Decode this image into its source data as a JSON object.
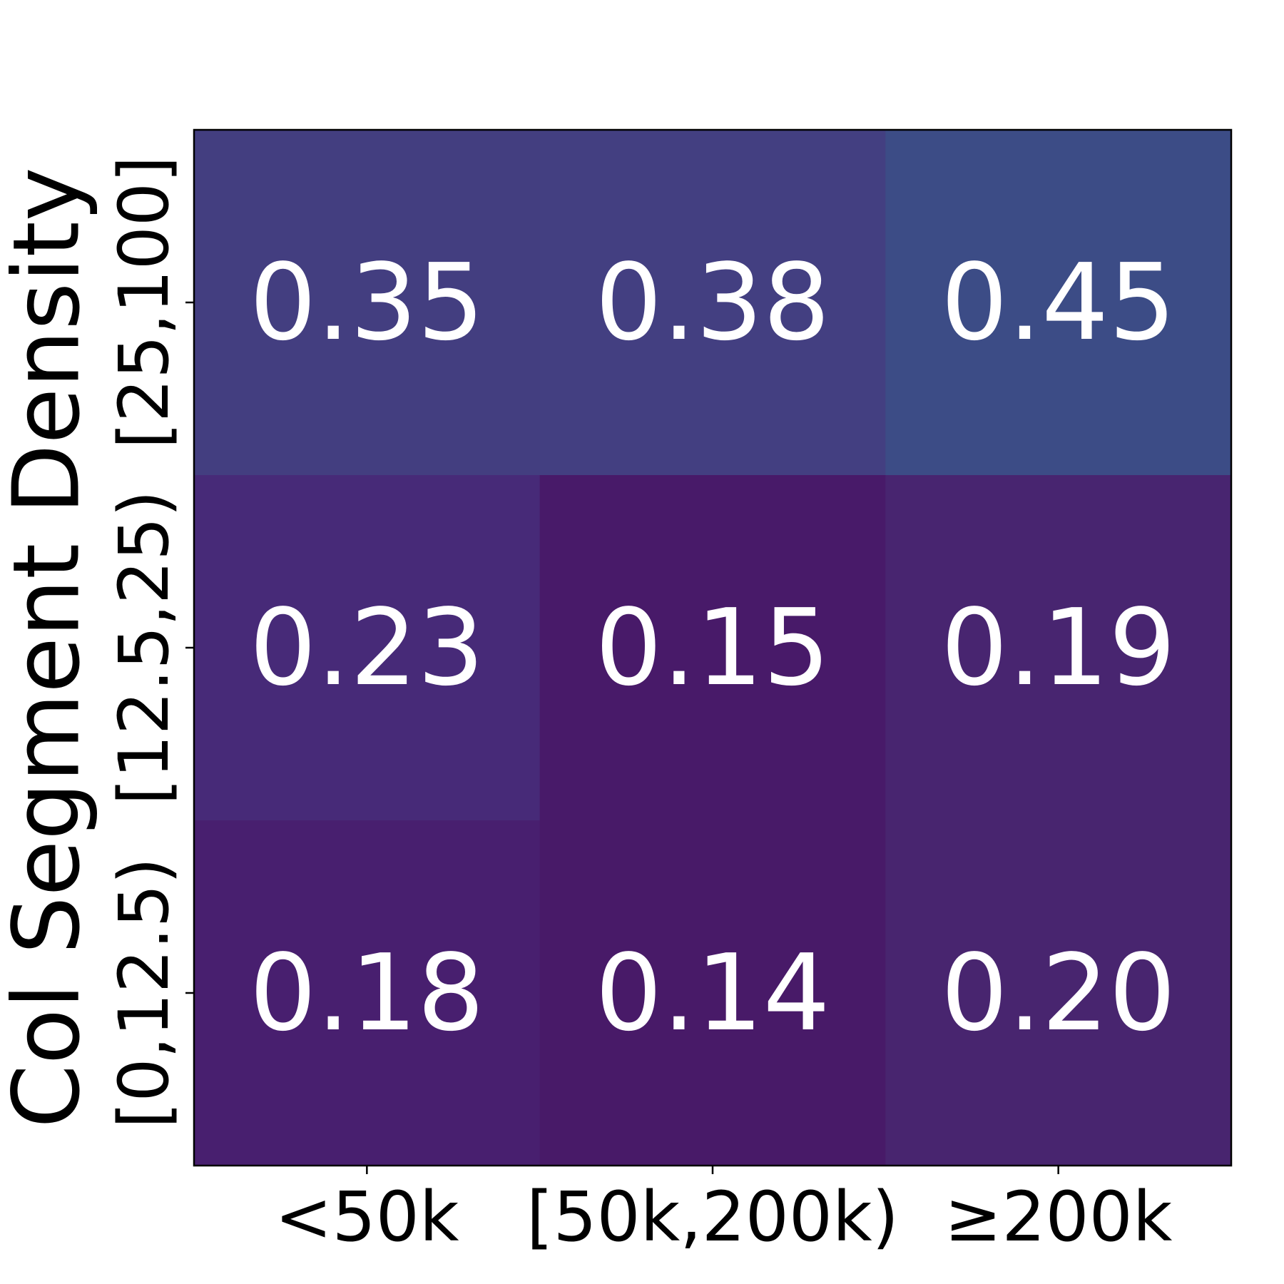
{
  "chart_data": {
    "type": "heatmap",
    "ylabel": "Col Segment Density",
    "x_categories": [
      "<50k",
      "[50k,200k)",
      "≥200k"
    ],
    "y_categories": [
      "[25,100]",
      "[12.5,25)",
      "[0,12.5)"
    ],
    "values": [
      [
        0.35,
        0.38,
        0.45
      ],
      [
        0.23,
        0.15,
        0.19
      ],
      [
        0.18,
        0.14,
        0.2
      ]
    ],
    "value_labels": [
      [
        "0.35",
        "0.38",
        "0.45"
      ],
      [
        "0.23",
        "0.15",
        "0.19"
      ],
      [
        "0.18",
        "0.14",
        "0.20"
      ]
    ],
    "colors": [
      [
        "#433e80",
        "#433f81",
        "#3c4c86"
      ],
      [
        "#472a78",
        "#481a69",
        "#482570"
      ],
      [
        "#481f6f",
        "#481a68",
        "#48256f"
      ]
    ]
  }
}
